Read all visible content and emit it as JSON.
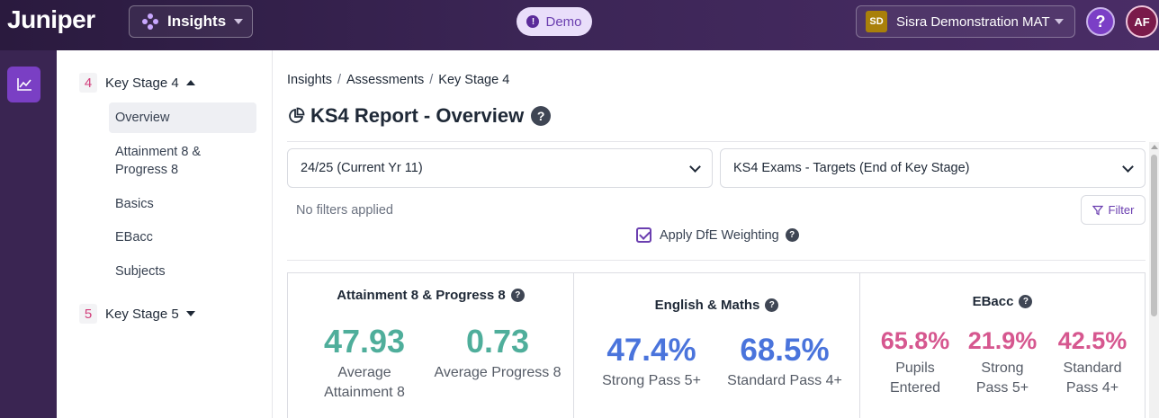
{
  "header": {
    "logo": "Juniper",
    "product": "Insights",
    "demo_label": "Demo",
    "org_badge": "SD",
    "org_name": "Sisra Demonstration MAT",
    "help": "?",
    "user_initials": "AF"
  },
  "sidebar": {
    "ks4": {
      "num": "4",
      "label": "Key Stage 4"
    },
    "items": [
      "Overview",
      "Attainment 8 &\nProgress 8",
      "Basics",
      "EBacc",
      "Subjects"
    ],
    "ks5": {
      "num": "5",
      "label": "Key Stage 5"
    }
  },
  "breadcrumb": [
    "Insights",
    "Assessments",
    "Key Stage 4"
  ],
  "page": {
    "title": "KS4 Report - Overview"
  },
  "filters": {
    "year_select": "24/25 (Current Yr 11)",
    "exam_select": "KS4 Exams - Targets (End of Key Stage)",
    "no_filters": "No filters applied",
    "filter_btn": "Filter",
    "dfe_label": "Apply DfE Weighting"
  },
  "cards": {
    "a8p8": {
      "title": "Attainment 8 & Progress 8",
      "m1": {
        "value": "47.93",
        "label": "Average Attainment 8"
      },
      "m2": {
        "value": "0.73",
        "label": "Average Progress 8"
      }
    },
    "em": {
      "title": "English & Maths",
      "m1": {
        "value": "47.4%",
        "label": "Strong Pass 5+"
      },
      "m2": {
        "value": "68.5%",
        "label": "Standard Pass 4+"
      }
    },
    "ebacc": {
      "title": "EBacc",
      "m1": {
        "value": "65.8%",
        "label": "Pupils Entered"
      },
      "m2": {
        "value": "21.9%",
        "label": "Strong Pass 5+"
      },
      "m3": {
        "value": "42.5%",
        "label": "Standard Pass 4+"
      }
    }
  },
  "colors": {
    "teal": "#4fae9b",
    "blue": "#4a74dc",
    "pink": "#d6578f",
    "accent": "#6b3fb0"
  }
}
